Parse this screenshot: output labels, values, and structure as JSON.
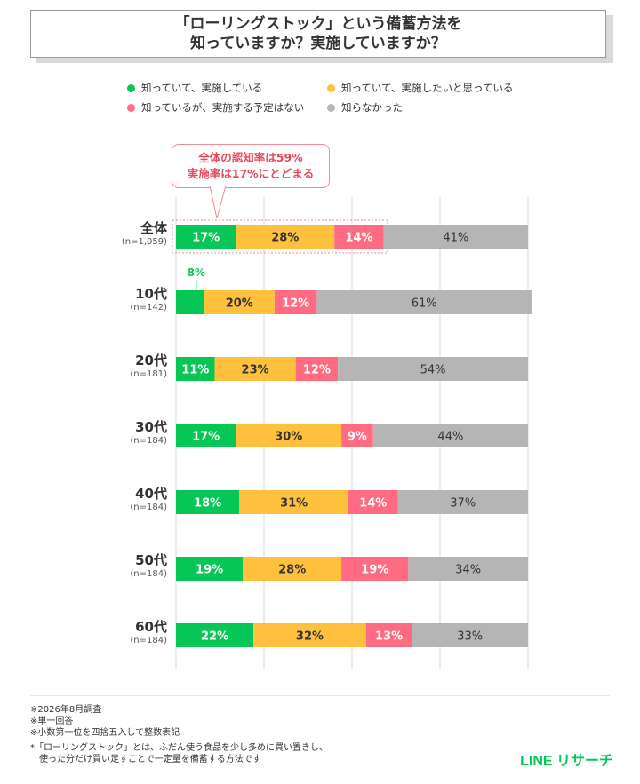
{
  "title": {
    "line1": "「ローリングストック」という備蓄方法を",
    "line2": "知っていますか？実施していますか？"
  },
  "legend": [
    {
      "label": "知っていて、実施している",
      "color": "#06c755"
    },
    {
      "label": "知っていて、実施したいと思っている",
      "color": "#ffc13d"
    },
    {
      "label": "知っているが、実施する予定はない",
      "color": "#ff6b80"
    },
    {
      "label": "知らなかった",
      "color": "#b5b5b5"
    }
  ],
  "callout": {
    "line1": "全体の認知率は59%",
    "line2": "実施率は17%にとどまる"
  },
  "chart_data": {
    "type": "bar",
    "orientation": "horizontal-stacked-100",
    "categories": [
      "全体",
      "10代",
      "20代",
      "30代",
      "40代",
      "50代",
      "60代"
    ],
    "sample_sizes": [
      "(n=1,059)",
      "(n=142)",
      "(n=181)",
      "(n=184)",
      "(n=184)",
      "(n=184)",
      "(n=184)"
    ],
    "series": [
      {
        "name": "知っていて、実施している",
        "color": "#06c755",
        "values": [
          17,
          8,
          11,
          17,
          18,
          19,
          22
        ]
      },
      {
        "name": "知っていて、実施したいと思っている",
        "color": "#ffc13d",
        "values": [
          28,
          20,
          23,
          30,
          31,
          28,
          32
        ]
      },
      {
        "name": "知っているが、実施する予定はない",
        "color": "#ff6b80",
        "values": [
          14,
          12,
          12,
          9,
          14,
          19,
          13
        ]
      },
      {
        "name": "知らなかった",
        "color": "#b5b5b5",
        "values": [
          41,
          61,
          54,
          44,
          37,
          34,
          33
        ]
      }
    ],
    "unit": "%",
    "xlim": [
      0,
      100
    ],
    "grid": true
  },
  "footnotes": [
    "※2026年8月調査",
    "※単一回答",
    "※小数第一位を四捨五入して整数表記"
  ],
  "definition": {
    "line1": "*「ローリングストック」とは、ふだん使う食品を少し多めに買い置きし、",
    "line2": "使った分だけ買い足すことで一定量を備蓄する方法です"
  },
  "brand": "LINE リサーチ"
}
